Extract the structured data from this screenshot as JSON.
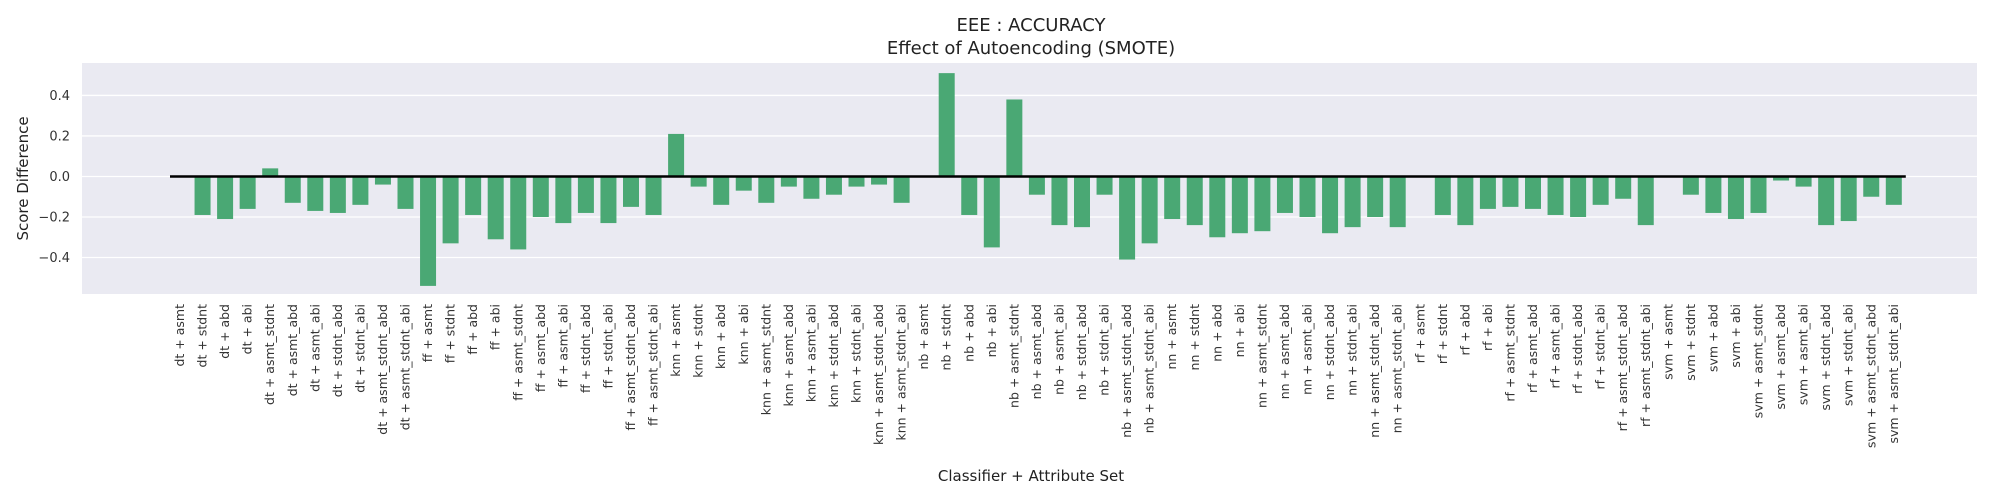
{
  "chart_data": {
    "type": "bar",
    "title": "EEE : ACCURACY",
    "subtitle": "Effect of Autoencoding (SMOTE)",
    "xlabel": "Classifier + Attribute Set",
    "ylabel": "Score Difference",
    "ylim": [
      -0.58,
      0.56
    ],
    "yticks": [
      -0.4,
      -0.2,
      0.0,
      0.2,
      0.4
    ],
    "ytick_labels": [
      "−0.4",
      "−0.2",
      "0.0",
      "0.2",
      "0.4"
    ],
    "grid": true,
    "bar_color": "#4aa874",
    "background_color": "#eaeaf2",
    "zero_line_color": "#000000",
    "categories": [
      "dt + asmt",
      "dt + stdnt",
      "dt + abd",
      "dt + abi",
      "dt + asmt_stdnt",
      "dt + asmt_abd",
      "dt + asmt_abi",
      "dt + stdnt_abd",
      "dt + stdnt_abi",
      "dt + asmt_stdnt_abd",
      "dt + asmt_stdnt_abi",
      "ff + asmt",
      "ff + stdnt",
      "ff + abd",
      "ff + abi",
      "ff + asmt_stdnt",
      "ff + asmt_abd",
      "ff + asmt_abi",
      "ff + stdnt_abd",
      "ff + stdnt_abi",
      "ff + asmt_stdnt_abd",
      "ff + asmt_stdnt_abi",
      "knn + asmt",
      "knn + stdnt",
      "knn + abd",
      "knn + abi",
      "knn + asmt_stdnt",
      "knn + asmt_abd",
      "knn + asmt_abi",
      "knn + stdnt_abd",
      "knn + stdnt_abi",
      "knn + asmt_stdnt_abd",
      "knn + asmt_stdnt_abi",
      "nb + asmt",
      "nb + stdnt",
      "nb + abd",
      "nb + abi",
      "nb + asmt_stdnt",
      "nb + asmt_abd",
      "nb + asmt_abi",
      "nb + stdnt_abd",
      "nb + stdnt_abi",
      "nb + asmt_stdnt_abd",
      "nb + asmt_stdnt_abi",
      "nn + asmt",
      "nn + stdnt",
      "nn + abd",
      "nn + abi",
      "nn + asmt_stdnt",
      "nn + asmt_abd",
      "nn + asmt_abi",
      "nn + stdnt_abd",
      "nn + stdnt_abi",
      "nn + asmt_stdnt_abd",
      "nn + asmt_stdnt_abi",
      "rf + asmt",
      "rf + stdnt",
      "rf + abd",
      "rf + abi",
      "rf + asmt_stdnt",
      "rf + asmt_abd",
      "rf + asmt_abi",
      "rf + stdnt_abd",
      "rf + stdnt_abi",
      "rf + asmt_stdnt_abd",
      "rf + asmt_stdnt_abi",
      "svm + asmt",
      "svm + stdnt",
      "svm + abd",
      "svm + abi",
      "svm + asmt_stdnt",
      "svm + asmt_abd",
      "svm + asmt_abi",
      "svm + stdnt_abd",
      "svm + stdnt_abi",
      "svm + asmt_stdnt_abd",
      "svm + asmt_stdnt_abi"
    ],
    "values": [
      0.0,
      -0.19,
      -0.21,
      -0.16,
      0.04,
      -0.13,
      -0.17,
      -0.18,
      -0.14,
      -0.04,
      -0.16,
      -0.54,
      -0.33,
      -0.19,
      -0.31,
      -0.36,
      -0.2,
      -0.23,
      -0.18,
      -0.23,
      -0.15,
      -0.19,
      0.21,
      -0.05,
      -0.14,
      -0.07,
      -0.13,
      -0.05,
      -0.11,
      -0.09,
      -0.05,
      -0.04,
      -0.13,
      0.0,
      0.51,
      -0.19,
      -0.35,
      0.38,
      -0.09,
      -0.24,
      -0.25,
      -0.09,
      -0.41,
      -0.33,
      -0.21,
      -0.24,
      -0.3,
      -0.28,
      -0.27,
      -0.18,
      -0.2,
      -0.28,
      -0.25,
      -0.2,
      -0.25,
      0.0,
      -0.19,
      -0.24,
      -0.16,
      -0.15,
      -0.16,
      -0.19,
      -0.2,
      -0.14,
      -0.11,
      -0.24,
      0.0,
      -0.09,
      -0.18,
      -0.21,
      -0.18,
      -0.02,
      -0.05,
      -0.24,
      -0.22,
      -0.1,
      -0.14
    ]
  }
}
